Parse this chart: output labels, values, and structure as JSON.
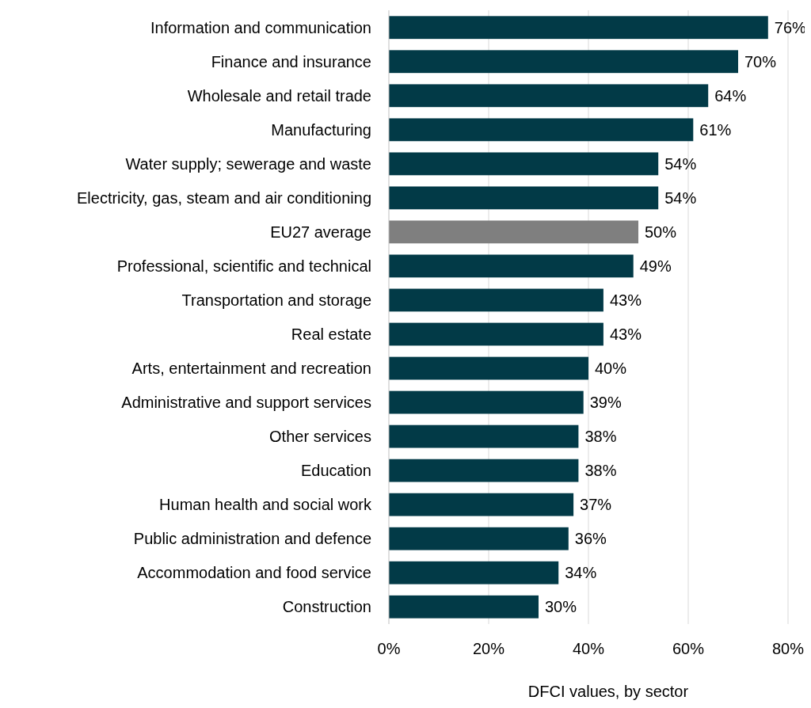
{
  "chart_data": {
    "type": "bar",
    "orientation": "horizontal",
    "xlabel": "DFCI values, by sector",
    "categories": [
      "Information and communication",
      "Finance and insurance",
      "Wholesale and retail trade",
      "Manufacturing",
      "Water supply; sewerage and waste",
      "Electricity, gas, steam and air conditioning",
      "EU27 average",
      "Professional, scientific and technical",
      "Transportation and storage",
      "Real estate",
      "Arts, entertainment and recreation",
      "Administrative and support services",
      "Other services",
      "Education",
      "Human health and social work",
      "Public administration and defence",
      "Accommodation and food service",
      "Construction"
    ],
    "values": [
      76,
      70,
      64,
      61,
      54,
      54,
      50,
      49,
      43,
      43,
      40,
      39,
      38,
      38,
      37,
      36,
      34,
      30
    ],
    "colors": [
      "#023a47",
      "#023a47",
      "#023a47",
      "#023a47",
      "#023a47",
      "#023a47",
      "#7f7f7f",
      "#023a47",
      "#023a47",
      "#023a47",
      "#023a47",
      "#023a47",
      "#023a47",
      "#023a47",
      "#023a47",
      "#023a47",
      "#023a47",
      "#023a47"
    ],
    "value_labels": [
      "76%",
      "70%",
      "64%",
      "61%",
      "54%",
      "54%",
      "50%",
      "49%",
      "43%",
      "43%",
      "40%",
      "39%",
      "38%",
      "38%",
      "37%",
      "36%",
      "34%",
      "30%"
    ],
    "xlim": [
      0,
      80
    ],
    "xticks": [
      {
        "value": 0,
        "label": "0%"
      },
      {
        "value": 20,
        "label": "20%"
      },
      {
        "value": 40,
        "label": "40%"
      },
      {
        "value": 60,
        "label": "60%"
      },
      {
        "value": 80,
        "label": "80%"
      }
    ],
    "grid": "x"
  }
}
